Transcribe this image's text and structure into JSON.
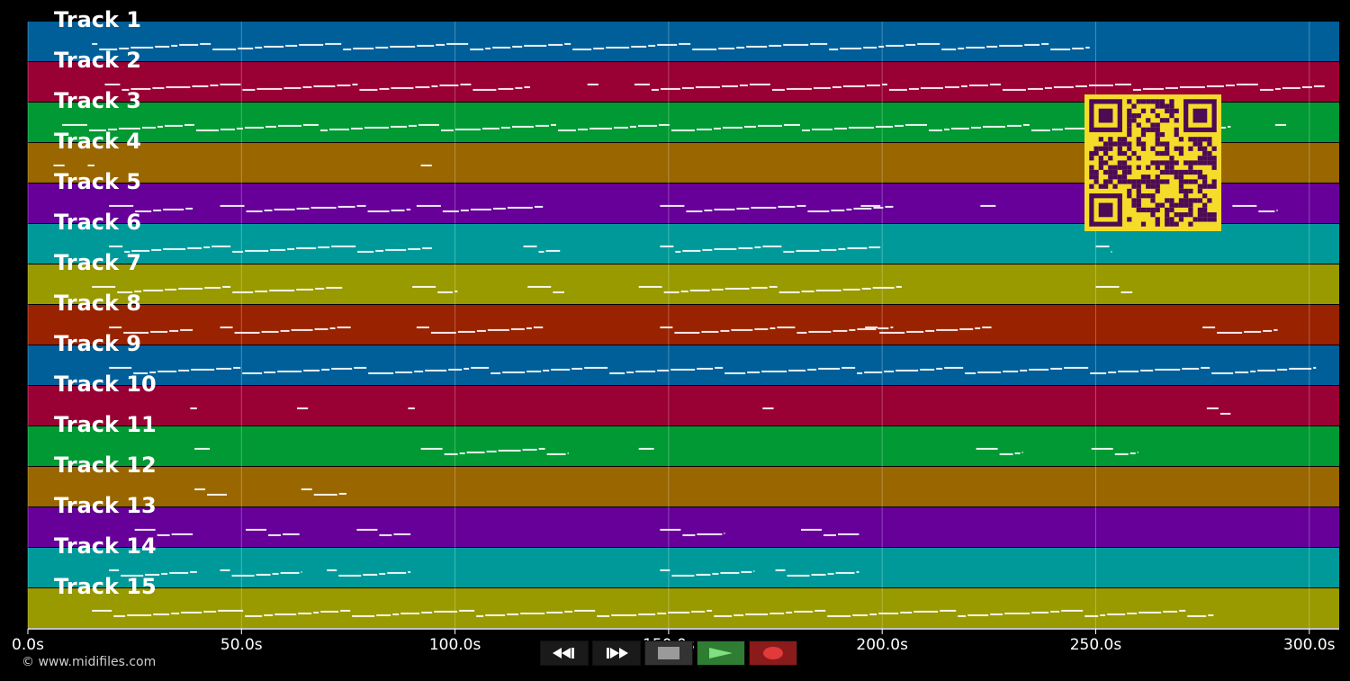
{
  "tracks": [
    {
      "label": "Track 1",
      "color": "#005f99"
    },
    {
      "label": "Track 2",
      "color": "#990033"
    },
    {
      "label": "Track 3",
      "color": "#009933"
    },
    {
      "label": "Track 4",
      "color": "#996600"
    },
    {
      "label": "Track 5",
      "color": "#660099"
    },
    {
      "label": "Track 6",
      "color": "#009999"
    },
    {
      "label": "Track 7",
      "color": "#999900"
    },
    {
      "label": "Track 8",
      "color": "#992200"
    },
    {
      "label": "Track 9",
      "color": "#005f99"
    },
    {
      "label": "Track 10",
      "color": "#990033"
    },
    {
      "label": "Track 11",
      "color": "#009933"
    },
    {
      "label": "Track 12",
      "color": "#996600"
    },
    {
      "label": "Track 13",
      "color": "#660099"
    },
    {
      "label": "Track 14",
      "color": "#009999"
    },
    {
      "label": "Track 15",
      "color": "#999900"
    }
  ],
  "timeline": {
    "start_seconds": 0,
    "end_seconds": 307,
    "tick_labels": [
      "0.0s",
      "50.0s",
      "100.0s",
      "150.0s",
      "200.0s",
      "250.0s",
      "300.0s"
    ],
    "tick_values": [
      0,
      50,
      100,
      150,
      200,
      250,
      300
    ]
  },
  "note_segments": [
    [
      [
        15,
        249
      ]
    ],
    [
      [
        18,
        118
      ],
      [
        131,
        134
      ],
      [
        142,
        304
      ]
    ],
    [
      [
        8,
        282
      ],
      [
        292,
        295
      ]
    ],
    [
      [
        6,
        9
      ],
      [
        14,
        16
      ],
      [
        92,
        95
      ]
    ],
    [
      [
        19,
        39
      ],
      [
        45,
        90
      ],
      [
        91,
        121
      ],
      [
        148,
        203
      ],
      [
        195,
        200
      ],
      [
        223,
        227
      ],
      [
        282,
        293
      ]
    ],
    [
      [
        19,
        95
      ],
      [
        116,
        125
      ],
      [
        148,
        200
      ],
      [
        250,
        254
      ]
    ],
    [
      [
        15,
        74
      ],
      [
        90,
        101
      ],
      [
        117,
        126
      ],
      [
        143,
        205
      ],
      [
        250,
        259
      ]
    ],
    [
      [
        19,
        39
      ],
      [
        45,
        76
      ],
      [
        91,
        121
      ],
      [
        148,
        203
      ],
      [
        196,
        226
      ],
      [
        275,
        293
      ]
    ],
    [
      [
        19,
        302
      ]
    ],
    [
      [
        38,
        40
      ],
      [
        63,
        66
      ],
      [
        89,
        91
      ],
      [
        172,
        175
      ],
      [
        276,
        282
      ]
    ],
    [
      [
        39,
        43
      ],
      [
        92,
        127
      ],
      [
        143,
        147
      ],
      [
        222,
        233
      ],
      [
        249,
        260
      ]
    ],
    [
      [
        39,
        47
      ],
      [
        64,
        75
      ]
    ],
    [
      [
        25,
        39
      ],
      [
        51,
        64
      ],
      [
        77,
        90
      ],
      [
        148,
        163
      ],
      [
        181,
        195
      ]
    ],
    [
      [
        19,
        40
      ],
      [
        45,
        64
      ],
      [
        70,
        90
      ],
      [
        148,
        170
      ],
      [
        175,
        195
      ]
    ],
    [
      [
        15,
        278
      ]
    ]
  ],
  "transport": {
    "rewind_icon": "rewind-icon",
    "forward_icon": "fast-forward-icon",
    "stop_icon": "stop-icon",
    "play_icon": "play-icon",
    "record_icon": "record-icon"
  },
  "watermark": "© www.midifiles.com",
  "colors": {
    "qr_bg": "#f5dc2a",
    "qr_fg": "#4d0a55",
    "play": "#2e7d32",
    "record": "#8b1a1a"
  }
}
